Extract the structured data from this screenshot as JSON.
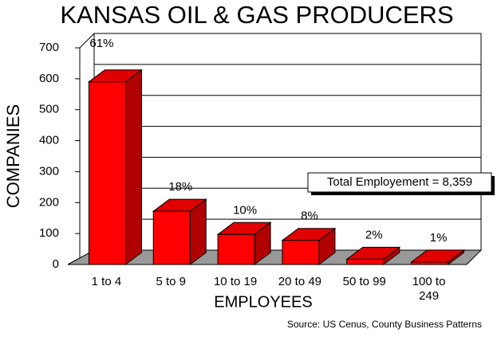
{
  "chart_data": {
    "type": "bar3d",
    "title": "KANSAS OIL & GAS PRODUCERS",
    "x_label": "EMPLOYEES",
    "y_label": "COMPANIES",
    "annotation": "Total Employement = 8,359",
    "source": "Source: US Cenus, County Business Patterns",
    "categories": [
      "1 to 4",
      "5 to 9",
      "10 to 19",
      "20 to 49",
      "50 to 99",
      "100 to 249"
    ],
    "values": [
      590,
      172,
      97,
      78,
      17,
      8
    ],
    "share_labels": [
      "61%",
      "18%",
      "10%",
      "8%",
      "2%",
      "1%"
    ],
    "color": "#ff0000",
    "ylim": [
      0,
      700
    ],
    "yticks": [
      0,
      100,
      200,
      300,
      400,
      500,
      600,
      700
    ],
    "grid": true
  }
}
